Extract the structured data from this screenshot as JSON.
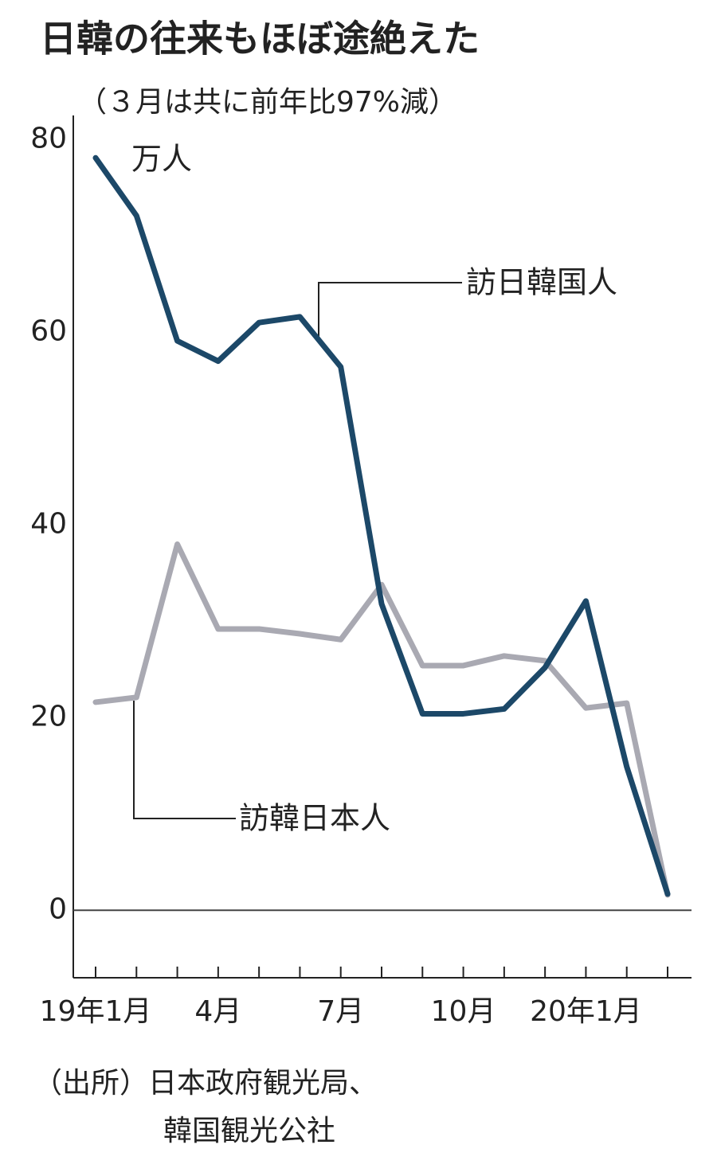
{
  "chart_data": {
    "type": "line",
    "title": "日韓の往来もほぼ途絶えた",
    "subtitle": "（３月は共に前年比97%減）",
    "y_unit": "万人",
    "categories": [
      "19年1月",
      null,
      null,
      "4月",
      null,
      null,
      "7月",
      null,
      null,
      "10月",
      null,
      null,
      "20年1月",
      null,
      null
    ],
    "series": [
      {
        "name": "訪日韓国人",
        "color": "#1c4868",
        "values": [
          78.1,
          72.1,
          59.1,
          57.0,
          61.0,
          61.6,
          56.4,
          31.8,
          20.4,
          20.4,
          20.9,
          25.2,
          32.1,
          14.9,
          1.7
        ]
      },
      {
        "name": "訪韓日本人",
        "color": "#a9a9b2",
        "values": [
          21.6,
          22.1,
          38.0,
          29.2,
          29.2,
          28.7,
          28.1,
          33.8,
          25.4,
          25.4,
          26.4,
          25.9,
          21.0,
          21.5,
          1.6
        ]
      }
    ],
    "ylim": [
      -7,
      82.5
    ],
    "yticks": [
      0,
      20,
      40,
      60,
      80
    ],
    "zero_line": true,
    "source": [
      "（出所）日本政府観光局、",
      "韓国観光公社"
    ]
  }
}
